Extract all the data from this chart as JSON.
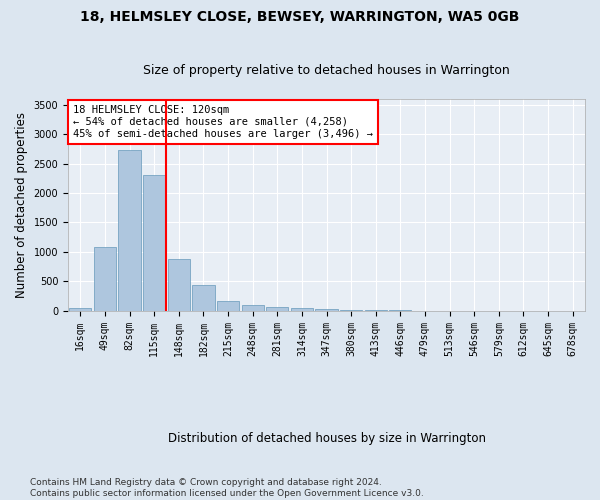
{
  "title": "18, HELMSLEY CLOSE, BEWSEY, WARRINGTON, WA5 0GB",
  "subtitle": "Size of property relative to detached houses in Warrington",
  "xlabel": "Distribution of detached houses by size in Warrington",
  "ylabel": "Number of detached properties",
  "categories": [
    "16sqm",
    "49sqm",
    "82sqm",
    "115sqm",
    "148sqm",
    "182sqm",
    "215sqm",
    "248sqm",
    "281sqm",
    "314sqm",
    "347sqm",
    "380sqm",
    "413sqm",
    "446sqm",
    "479sqm",
    "513sqm",
    "546sqm",
    "579sqm",
    "612sqm",
    "645sqm",
    "678sqm"
  ],
  "values": [
    50,
    1090,
    2730,
    2300,
    880,
    430,
    160,
    95,
    65,
    50,
    30,
    15,
    5,
    3,
    2,
    1,
    1,
    0,
    0,
    0,
    0
  ],
  "bar_color": "#aec6de",
  "bar_edge_color": "#6699bb",
  "vline_color": "red",
  "vline_index": 3.5,
  "annotation_line1": "18 HELMSLEY CLOSE: 120sqm",
  "annotation_line2": "← 54% of detached houses are smaller (4,258)",
  "annotation_line3": "45% of semi-detached houses are larger (3,496) →",
  "annotation_box_color": "white",
  "annotation_box_edge_color": "red",
  "ylim": [
    0,
    3600
  ],
  "yticks": [
    0,
    500,
    1000,
    1500,
    2000,
    2500,
    3000,
    3500
  ],
  "footer": "Contains HM Land Registry data © Crown copyright and database right 2024.\nContains public sector information licensed under the Open Government Licence v3.0.",
  "bg_color": "#dce6f0",
  "plot_bg_color": "#e8eef5",
  "title_fontsize": 10,
  "subtitle_fontsize": 9,
  "axis_label_fontsize": 8.5,
  "tick_fontsize": 7,
  "footer_fontsize": 6.5
}
